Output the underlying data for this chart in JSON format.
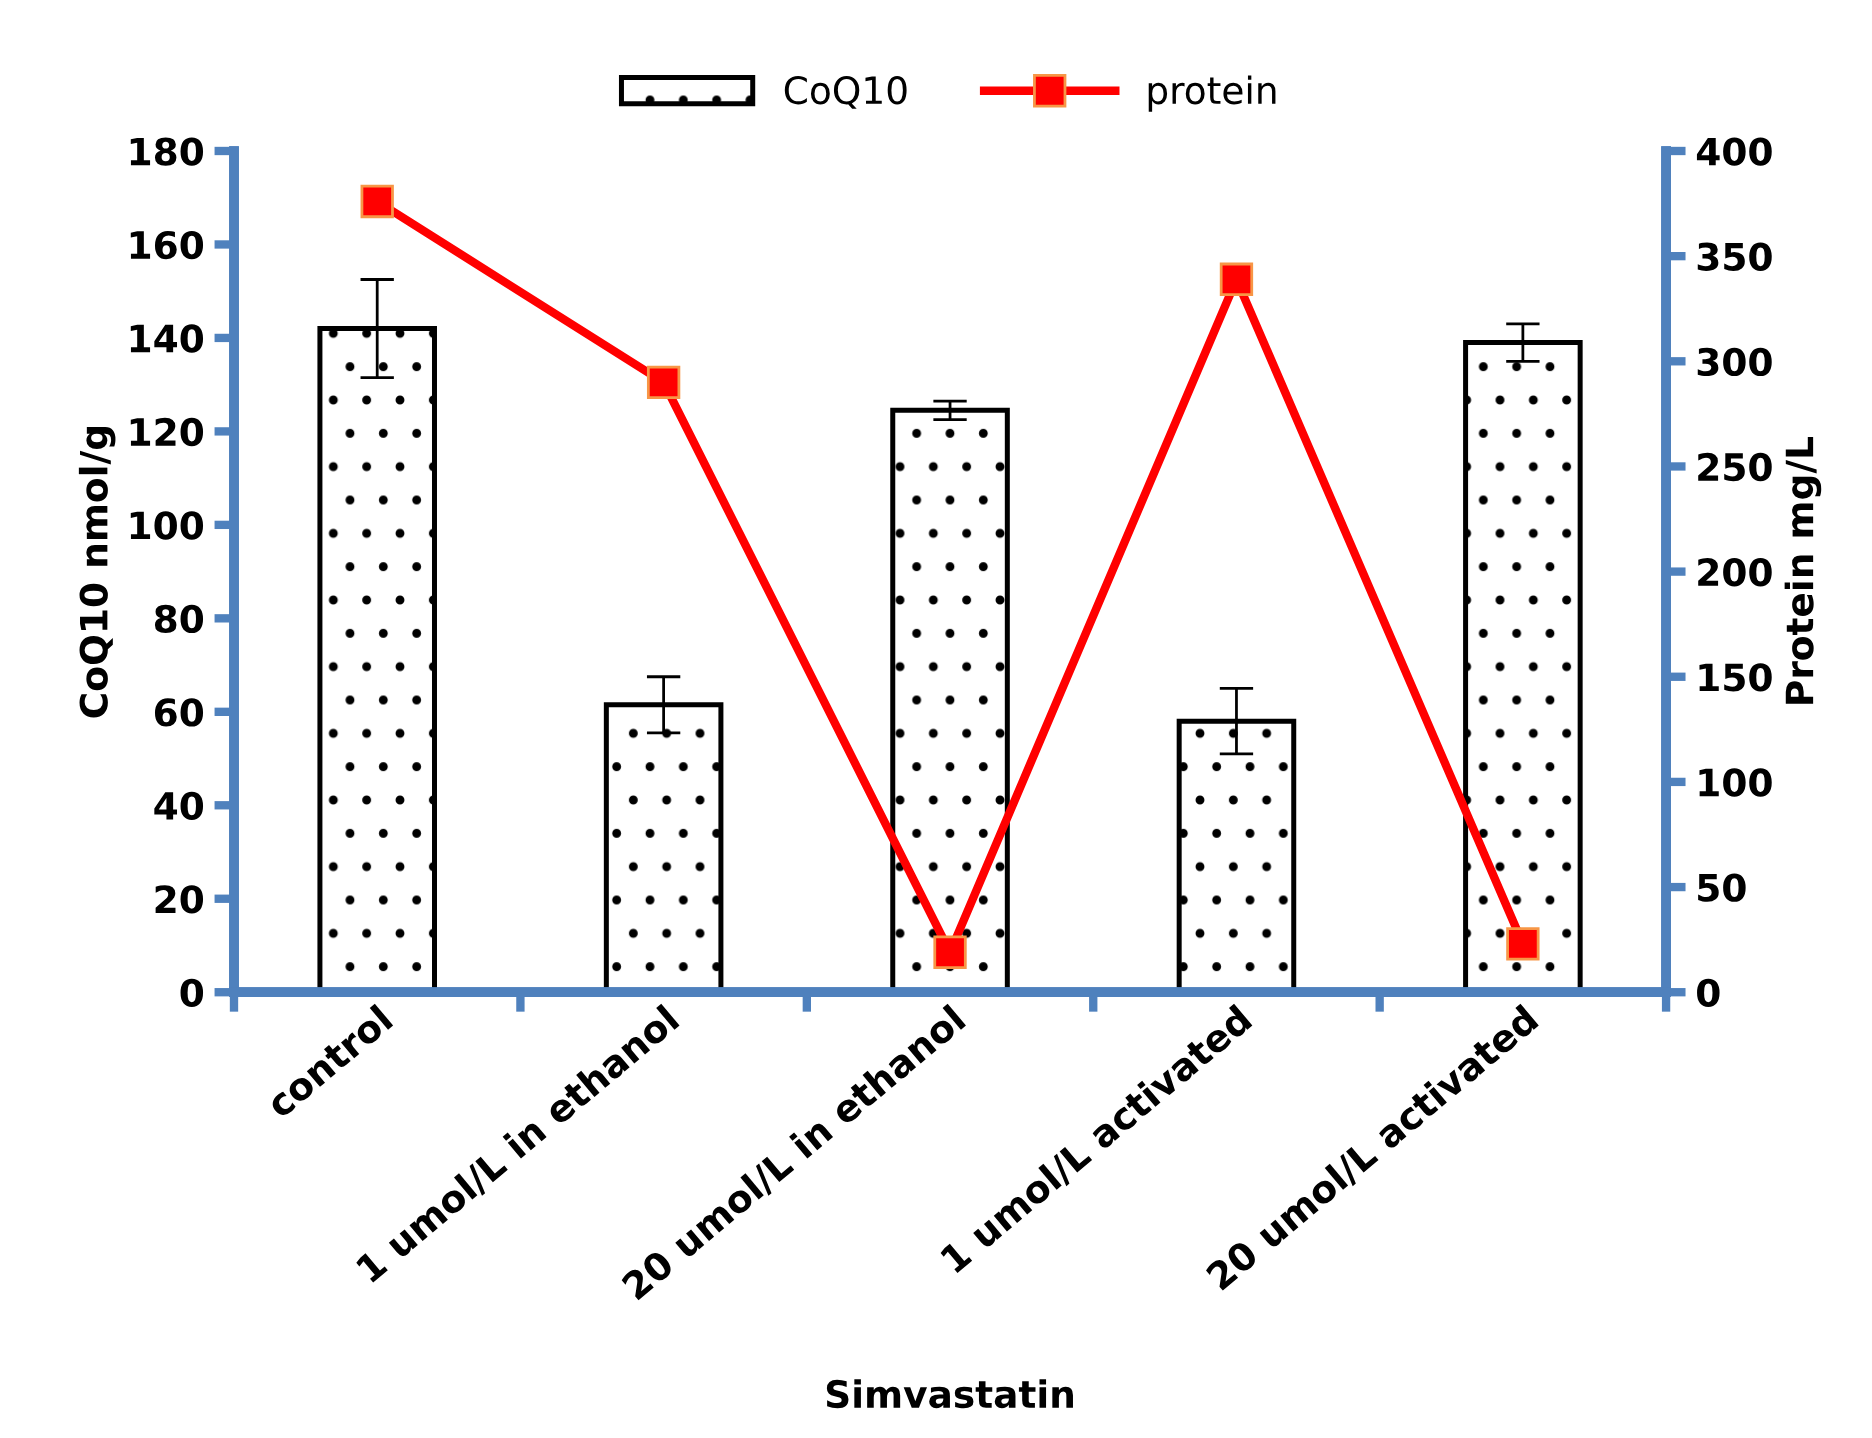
{
  "chart_data": {
    "type": "bar",
    "xlabel": "Simvastatin",
    "ylabel": "CoQ10 nmol/g",
    "y2label": "Protein mg/L",
    "categories": [
      "control",
      "1 umol/L in ethanol",
      "20 umol/L in ethanol",
      "1 umol/L activated",
      "20 umol/L activated"
    ],
    "series": [
      {
        "name": "CoQ10",
        "color": "#000000",
        "values": [
          142,
          61.5,
          124.5,
          58,
          139
        ],
        "errors": [
          10.5,
          6,
          2,
          7,
          4
        ]
      },
      {
        "name": "protein",
        "type": "line",
        "axis": "y2",
        "color": "#ff0000",
        "values": [
          376,
          290,
          19,
          339,
          23
        ],
        "marker": "square"
      }
    ],
    "ylim": [
      0,
      180
    ],
    "yticks": [
      0,
      20,
      40,
      60,
      80,
      100,
      120,
      140,
      160,
      180
    ],
    "y2lim": [
      0,
      400
    ],
    "y2ticks": [
      0,
      50,
      100,
      150,
      200,
      250,
      300,
      350,
      400
    ],
    "grid": false,
    "legend": "top"
  }
}
